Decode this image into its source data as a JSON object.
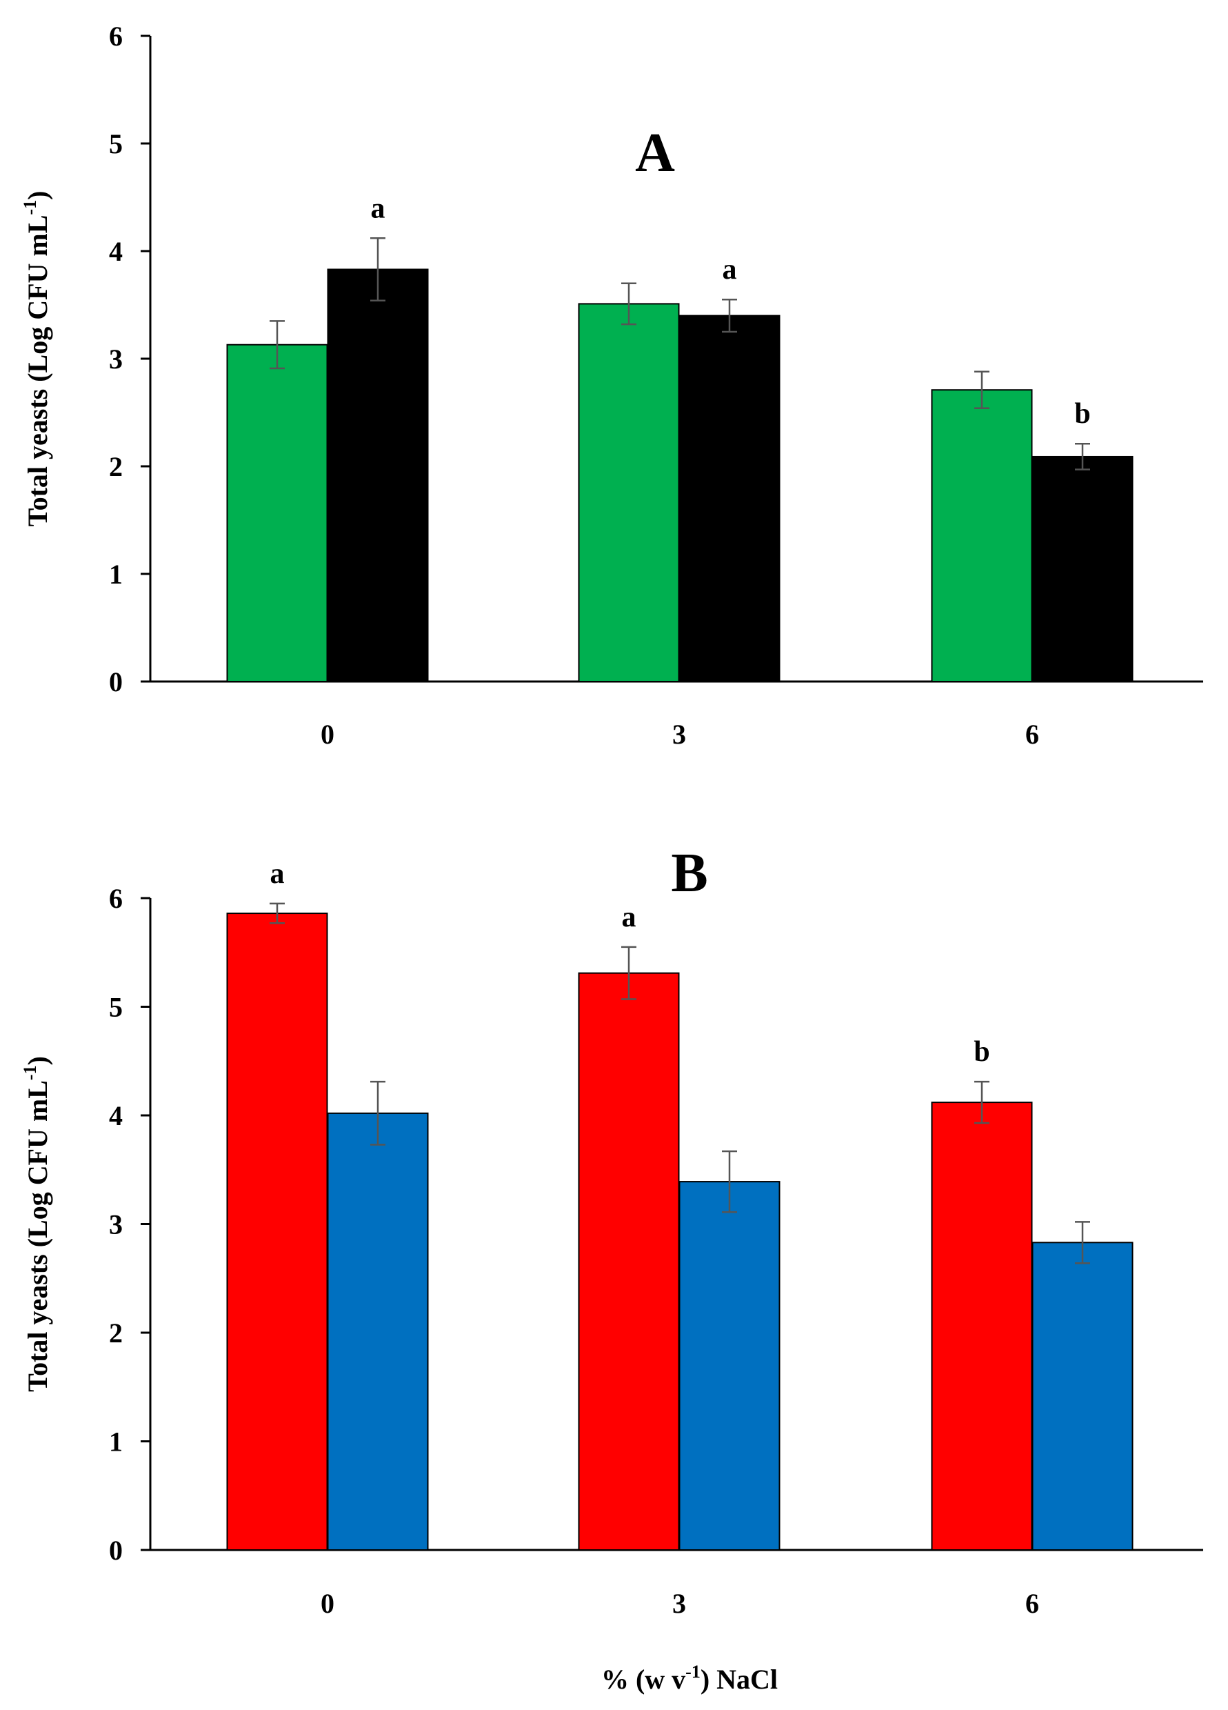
{
  "chart_data": [
    {
      "type": "bar",
      "title": "A",
      "ylabel": "Total yeasts (Log CFU mL",
      "ylabel_sup": "-1",
      "ylabel_end": ")",
      "xlabel": "",
      "ylim": [
        0,
        6
      ],
      "yticks": [
        "0",
        "1",
        "2",
        "3",
        "4",
        "5",
        "6"
      ],
      "categories": [
        "0",
        "3",
        "6"
      ],
      "series": [
        {
          "name": "series-1",
          "color": "#00b050",
          "values": [
            3.13,
            3.51,
            2.71
          ],
          "errors": [
            0.22,
            0.19,
            0.17
          ],
          "letters": [
            "",
            "",
            ""
          ]
        },
        {
          "name": "series-2",
          "color": "#000000",
          "values": [
            3.83,
            3.4,
            2.09
          ],
          "errors": [
            0.29,
            0.15,
            0.12
          ],
          "letters": [
            "a",
            "a",
            "b"
          ]
        }
      ]
    },
    {
      "type": "bar",
      "title": "B",
      "ylabel": "Total yeasts (Log CFU mL",
      "ylabel_sup": "-1",
      "ylabel_end": ")",
      "xlabel": "% (w v",
      "xlabel_sup": "-1",
      "xlabel_end": ") NaCl",
      "ylim": [
        0,
        6
      ],
      "yticks": [
        "0",
        "1",
        "2",
        "3",
        "4",
        "5",
        "6"
      ],
      "categories": [
        "0",
        "3",
        "6"
      ],
      "series": [
        {
          "name": "series-1",
          "color": "#ff0000",
          "values": [
            5.86,
            5.31,
            4.12
          ],
          "errors": [
            0.09,
            0.24,
            0.19
          ],
          "letters": [
            "a",
            "a",
            "b"
          ]
        },
        {
          "name": "series-2",
          "color": "#0070c0",
          "values": [
            4.02,
            3.39,
            2.83
          ],
          "errors": [
            0.29,
            0.28,
            0.19
          ],
          "letters": [
            "",
            "",
            ""
          ]
        }
      ]
    }
  ]
}
